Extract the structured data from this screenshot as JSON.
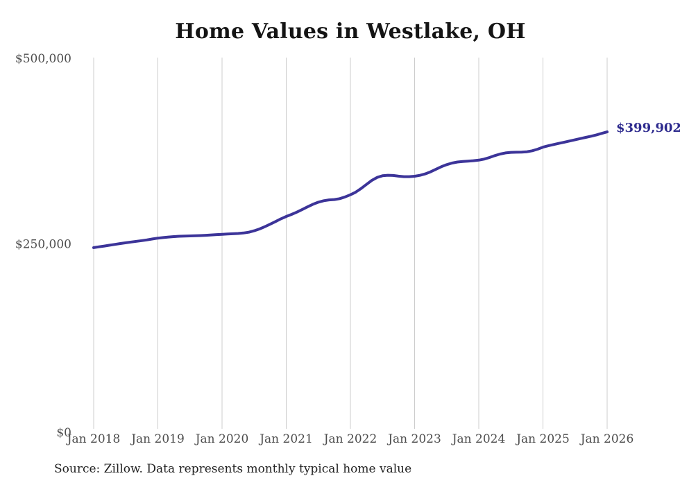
{
  "header": {
    "title": "Home Values in Westlake, OH"
  },
  "footer": {
    "source": "Source: Zillow. Data represents monthly typical home value"
  },
  "chart_data": {
    "type": "line",
    "title": "Home Values in Westlake, OH",
    "xlabel": "",
    "ylabel": "",
    "ylim": [
      0,
      500000
    ],
    "grid": "vertical-year-gridlines-only",
    "legend": "none",
    "series_name": "Typical home value",
    "frequency": "monthly",
    "x_start": "Jan 2018",
    "x_end": "Jan 2026",
    "x_tick_labels": [
      "Jan 2018",
      "Jan 2019",
      "Jan 2020",
      "Jan 2021",
      "Jan 2022",
      "Jan 2023",
      "Jan 2024",
      "Jan 2025",
      "Jan 2026"
    ],
    "y_ticks": [
      {
        "value": 0,
        "label": "$0"
      },
      {
        "value": 250000,
        "label": "$250,000"
      },
      {
        "value": 500000,
        "label": "$500,000"
      }
    ],
    "end_label": "$399,902",
    "latest_value": 399902,
    "values": [
      244000,
      245100,
      246200,
      247300,
      248400,
      249500,
      250600,
      251600,
      252500,
      253500,
      254500,
      255700,
      256800,
      257600,
      258300,
      258900,
      259300,
      259600,
      259800,
      260000,
      260300,
      260700,
      261100,
      261600,
      262000,
      262400,
      262700,
      263100,
      263700,
      264800,
      266700,
      269200,
      272200,
      275600,
      279200,
      282800,
      286000,
      288800,
      291900,
      295400,
      299000,
      302400,
      305200,
      307200,
      308300,
      308800,
      310000,
      312300,
      315200,
      318800,
      323600,
      329200,
      334600,
      338600,
      340800,
      341500,
      341200,
      340300,
      339600,
      339600,
      340200,
      341400,
      343400,
      346200,
      349600,
      353000,
      355800,
      357900,
      359300,
      360100,
      360600,
      361100,
      361900,
      363300,
      365400,
      367900,
      370100,
      371600,
      372300,
      372500,
      372600,
      373200,
      374500,
      376600,
      379300,
      381200,
      382900,
      384500,
      386100,
      387700,
      389300,
      390900,
      392500,
      394100,
      395900,
      397900,
      399902
    ],
    "colors": {
      "line": "#3c3499",
      "end_label": "#2d2a8e",
      "gridline": "#cccccc",
      "axis_text": "#4d4d4d",
      "title_text": "#141414",
      "source_text": "#222222",
      "background": "#ffffff"
    }
  }
}
